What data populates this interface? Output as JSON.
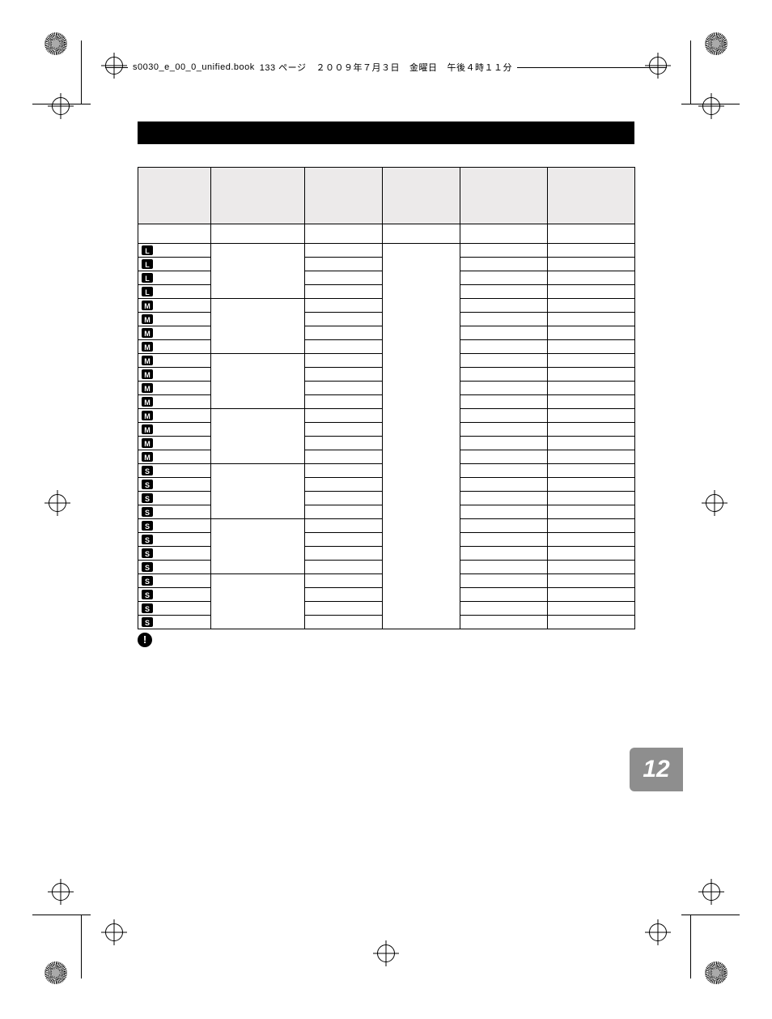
{
  "header": {
    "filename": "s0030_e_00_0_unified.book",
    "page_label": "133 ページ",
    "date": "２００９年７月３日",
    "weekday": "金曜日",
    "time": "午後４時１１分"
  },
  "chapter_number": "12",
  "note_icon_label": "!",
  "table": {
    "columns": [
      "",
      "",
      "",
      "",
      "",
      ""
    ],
    "rows": [
      {
        "badge": "L"
      },
      {
        "badge": "L"
      },
      {
        "badge": "L"
      },
      {
        "badge": "L"
      },
      {
        "badge": "M"
      },
      {
        "badge": "M"
      },
      {
        "badge": "M"
      },
      {
        "badge": "M"
      },
      {
        "badge": "M"
      },
      {
        "badge": "M"
      },
      {
        "badge": "M"
      },
      {
        "badge": "M"
      },
      {
        "badge": "M"
      },
      {
        "badge": "M"
      },
      {
        "badge": "M"
      },
      {
        "badge": "M"
      },
      {
        "badge": "S"
      },
      {
        "badge": "S"
      },
      {
        "badge": "S"
      },
      {
        "badge": "S"
      },
      {
        "badge": "S"
      },
      {
        "badge": "S"
      },
      {
        "badge": "S"
      },
      {
        "badge": "S"
      },
      {
        "badge": "S"
      },
      {
        "badge": "S"
      },
      {
        "badge": "S"
      },
      {
        "badge": "S"
      }
    ],
    "group_spans_col1": [
      4,
      4,
      4,
      4,
      4,
      4,
      4
    ],
    "group_spans_col3": [
      28
    ]
  },
  "colors": {
    "header_bg": "#eceaea",
    "black": "#000000",
    "tab_bg": "#8e8e8e",
    "white": "#ffffff"
  }
}
